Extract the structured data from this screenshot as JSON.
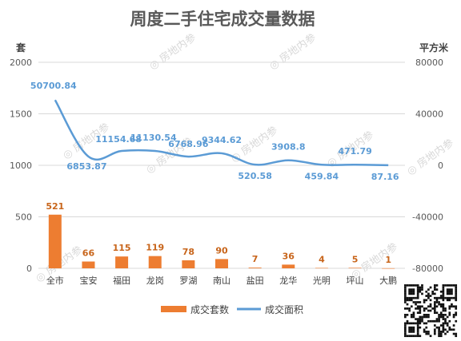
{
  "chart_data": {
    "type": "bar",
    "title": "周度二手住宅成交量数据",
    "categories": [
      "全市",
      "宝安",
      "福田",
      "龙岗",
      "罗湖",
      "南山",
      "盐田",
      "龙华",
      "光明",
      "坪山",
      "大鹏"
    ],
    "series": [
      {
        "name": "成交套数",
        "type": "bar",
        "axis": "left",
        "color": "#ed7d31",
        "values": [
          521,
          66,
          115,
          119,
          78,
          90,
          7,
          36,
          4,
          5,
          1
        ],
        "labels": [
          "521",
          "66",
          "115",
          "119",
          "78",
          "90",
          "7",
          "36",
          "4",
          "5",
          "1"
        ]
      },
      {
        "name": "成交面积",
        "type": "line",
        "axis": "right",
        "color": "#5b9bd5",
        "smooth": true,
        "values": [
          50700.84,
          6853.87,
          11154.68,
          11130.54,
          6768.96,
          9344.62,
          520.58,
          3908.8,
          459.84,
          471.79,
          87.16
        ],
        "labels": [
          "50700.84",
          "6853.87",
          "11154.68",
          "11130.54",
          "6768.96",
          "9344.62",
          "520.58",
          "3908.8",
          "459.84",
          "471.79",
          "87.16"
        ]
      }
    ],
    "y_left": {
      "label": "套",
      "ylim": [
        0,
        2000
      ],
      "ticks": [
        "0",
        "500",
        "1000",
        "1500",
        "2000"
      ]
    },
    "y_right": {
      "label": "平方米",
      "ylim": [
        -80000,
        80000
      ],
      "ticks": [
        "-80000",
        "-40000",
        "0",
        "40000",
        "80000"
      ]
    },
    "grid": true,
    "legend": "bottom"
  },
  "watermark": "房地内参",
  "qr_code": "qr-code-icon"
}
